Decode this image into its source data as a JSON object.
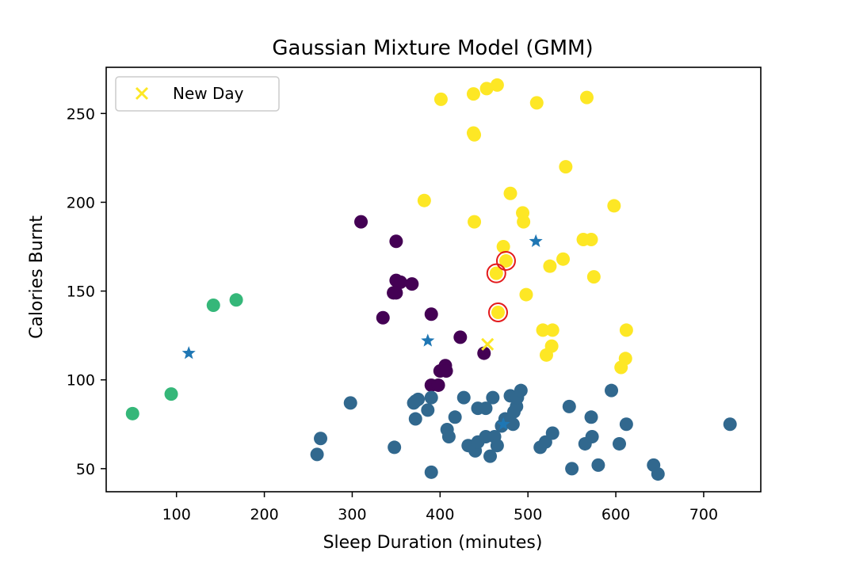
{
  "chart_data": {
    "type": "scatter",
    "title": "Gaussian Mixture Model (GMM)",
    "xlabel": "Sleep Duration (minutes)",
    "ylabel": "Calories Burnt",
    "xlim": [
      20,
      765
    ],
    "ylim": [
      37,
      276
    ],
    "x_ticks": [
      100,
      200,
      300,
      400,
      500,
      600,
      700
    ],
    "y_ticks": [
      50,
      100,
      150,
      200,
      250
    ],
    "grid": false,
    "legend": {
      "position": "top-left",
      "entries": [
        "New Day"
      ]
    },
    "colors": {
      "cluster_purple": "#440154",
      "cluster_blue": "#31688e",
      "cluster_green": "#35b779",
      "cluster_yellow": "#fde725",
      "center_star": "#1f77b4",
      "highlight_ring": "#e31a1c",
      "new_day": "#fde725"
    },
    "series": [
      {
        "cluster": "purple",
        "points": [
          [
            310,
            189
          ],
          [
            350,
            178
          ],
          [
            350,
            156
          ],
          [
            355,
            155
          ],
          [
            347,
            149
          ],
          [
            350,
            149
          ],
          [
            368,
            154
          ],
          [
            335,
            135
          ],
          [
            390,
            137
          ],
          [
            423,
            124
          ],
          [
            400,
            105
          ],
          [
            406,
            108
          ],
          [
            407,
            105
          ],
          [
            390,
            97
          ],
          [
            398,
            97
          ],
          [
            450,
            115
          ]
        ]
      },
      {
        "cluster": "blue",
        "points": [
          [
            298,
            87
          ],
          [
            260,
            58
          ],
          [
            264,
            67
          ],
          [
            348,
            62
          ],
          [
            390,
            48
          ],
          [
            370,
            87
          ],
          [
            375,
            89
          ],
          [
            372,
            88
          ],
          [
            372,
            78
          ],
          [
            386,
            83
          ],
          [
            390,
            90
          ],
          [
            408,
            72
          ],
          [
            410,
            68
          ],
          [
            417,
            79
          ],
          [
            427,
            90
          ],
          [
            432,
            63
          ],
          [
            440,
            60
          ],
          [
            443,
            65
          ],
          [
            443,
            84
          ],
          [
            452,
            84
          ],
          [
            452,
            68
          ],
          [
            457,
            57
          ],
          [
            460,
            90
          ],
          [
            462,
            68
          ],
          [
            465,
            63
          ],
          [
            470,
            74
          ],
          [
            474,
            78
          ],
          [
            480,
            91
          ],
          [
            483,
            75
          ],
          [
            484,
            82
          ],
          [
            487,
            85
          ],
          [
            488,
            90
          ],
          [
            492,
            94
          ],
          [
            514,
            62
          ],
          [
            520,
            65
          ],
          [
            528,
            70
          ],
          [
            547,
            85
          ],
          [
            550,
            50
          ],
          [
            565,
            64
          ],
          [
            572,
            79
          ],
          [
            573,
            68
          ],
          [
            580,
            52
          ],
          [
            595,
            94
          ],
          [
            604,
            64
          ],
          [
            612,
            75
          ],
          [
            643,
            52
          ],
          [
            648,
            47
          ],
          [
            730,
            75
          ]
        ]
      },
      {
        "cluster": "green",
        "points": [
          [
            50,
            81
          ],
          [
            94,
            92
          ],
          [
            142,
            142
          ],
          [
            168,
            145
          ]
        ]
      },
      {
        "cluster": "yellow",
        "points": [
          [
            401,
            258
          ],
          [
            438,
            261
          ],
          [
            453,
            264
          ],
          [
            465,
            266
          ],
          [
            510,
            256
          ],
          [
            567,
            259
          ],
          [
            438,
            239
          ],
          [
            439,
            238
          ],
          [
            543,
            220
          ],
          [
            382,
            201
          ],
          [
            480,
            205
          ],
          [
            494,
            194
          ],
          [
            495,
            189
          ],
          [
            598,
            198
          ],
          [
            439,
            189
          ],
          [
            472,
            175
          ],
          [
            563,
            179
          ],
          [
            572,
            179
          ],
          [
            540,
            168
          ],
          [
            525,
            164
          ],
          [
            464,
            160
          ],
          [
            475,
            167
          ],
          [
            575,
            158
          ],
          [
            498,
            148
          ],
          [
            466,
            138
          ],
          [
            517,
            128
          ],
          [
            528,
            128
          ],
          [
            612,
            128
          ],
          [
            527,
            119
          ],
          [
            521,
            114
          ],
          [
            611,
            112
          ],
          [
            606,
            107
          ]
        ]
      }
    ],
    "centers": [
      [
        114,
        115
      ],
      [
        386,
        122
      ],
      [
        509,
        178
      ],
      [
        472,
        75
      ]
    ],
    "highlighted": [
      [
        464,
        160
      ],
      [
        475,
        167
      ],
      [
        466,
        138
      ]
    ],
    "new_day": [
      [
        454,
        120
      ]
    ]
  }
}
